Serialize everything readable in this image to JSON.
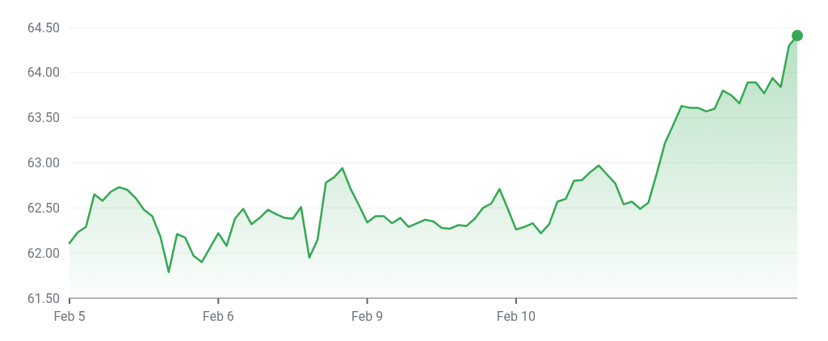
{
  "chart_data": {
    "type": "area",
    "categories": [
      "Feb 5",
      null,
      null,
      null,
      null,
      null,
      null,
      null,
      null,
      null,
      null,
      null,
      null,
      null,
      null,
      null,
      null,
      null,
      "Feb 6",
      null,
      null,
      null,
      null,
      null,
      null,
      null,
      null,
      null,
      null,
      null,
      null,
      null,
      null,
      null,
      null,
      null,
      "Feb 9",
      null,
      null,
      null,
      null,
      null,
      null,
      null,
      null,
      null,
      null,
      null,
      null,
      null,
      null,
      null,
      null,
      null,
      "Feb 10",
      null,
      null,
      null,
      null,
      null,
      null,
      null,
      null,
      null,
      null,
      null,
      null,
      null,
      null,
      null,
      null,
      null,
      null,
      null,
      null,
      null,
      null,
      null,
      null,
      null,
      null,
      null,
      null,
      null,
      null,
      null,
      null,
      null,
      null
    ],
    "series": [
      {
        "color": "#34a853",
        "values": [
          62.11,
          62.23,
          62.29,
          62.65,
          62.58,
          62.68,
          62.73,
          62.7,
          62.61,
          62.48,
          62.41,
          62.18,
          61.79,
          62.21,
          62.17,
          61.97,
          61.9,
          62.06,
          62.22,
          62.08,
          62.38,
          62.49,
          62.32,
          62.39,
          62.48,
          62.43,
          62.39,
          62.38,
          62.51,
          61.95,
          62.15,
          62.78,
          62.84,
          62.94,
          62.71,
          62.53,
          62.34,
          62.41,
          62.41,
          62.33,
          62.39,
          62.29,
          62.33,
          62.37,
          62.35,
          62.28,
          62.27,
          62.31,
          62.3,
          62.38,
          62.5,
          62.55,
          62.71,
          62.49,
          62.26,
          62.29,
          62.33,
          62.22,
          62.32,
          62.57,
          62.6,
          62.8,
          62.81,
          62.9,
          62.97,
          62.87,
          62.77,
          62.54,
          62.57,
          62.49,
          62.56,
          62.88,
          63.22,
          63.42,
          63.63,
          63.61,
          63.61,
          63.57,
          63.6,
          63.8,
          63.75,
          63.66,
          63.89,
          63.89,
          63.77,
          63.94,
          63.84,
          64.3,
          64.41
        ]
      }
    ],
    "ylim": [
      61.5,
      64.5
    ],
    "yticks": [
      {
        "value": 61.5,
        "label": "61.50"
      },
      {
        "value": 62,
        "label": "62.00"
      },
      {
        "value": 62.5,
        "label": "62.50"
      },
      {
        "value": 63,
        "label": "63.00"
      },
      {
        "value": 63.5,
        "label": "63.50"
      },
      {
        "value": 64,
        "label": "64.00"
      },
      {
        "value": 64.5,
        "label": "64.50"
      }
    ],
    "grid": "y",
    "marker": "none",
    "line_style": "solid"
  }
}
